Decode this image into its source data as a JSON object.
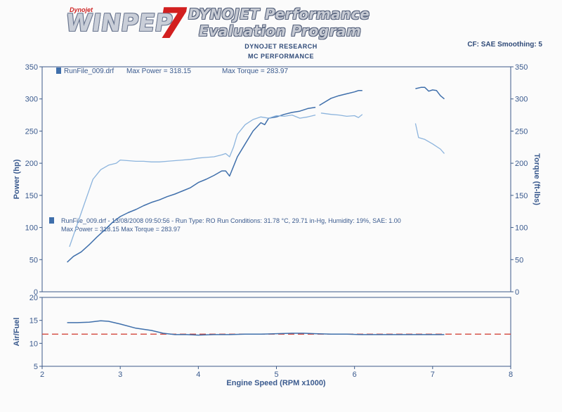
{
  "header": {
    "logo_tag": "Dynojet",
    "logo_text": "WINPEP",
    "logo_number": "7",
    "title_line1": "DYNOJET Performance",
    "title_line2": "Evaluation Program",
    "sub_line1": "DYNOJET RESEARCH",
    "sub_line2": "MC PERFORMANCE",
    "settings": "CF: SAE  Smoothing: 5"
  },
  "chart_data": [
    {
      "type": "line",
      "title": "",
      "legend_top": {
        "file": "RunFile_009.drf",
        "max_power": "Max Power = 318.15",
        "max_torque": "Max Torque = 283.97"
      },
      "legend_run": {
        "line1": "RunFile_009.drf - 13/08/2008 09:50:56 - Run Type: RO  Run Conditions: 31.78 °C, 29.71 in-Hg,  Humidity:  19%, SAE: 1.00",
        "line2": "Max Power = 318.15  Max Torque = 283.97"
      },
      "ylabel_left": "Power (hp)",
      "ylabel_right": "Torque (ft-lbs)",
      "ylim": [
        0,
        350
      ],
      "yticks": [
        "0",
        "50",
        "100",
        "150",
        "200",
        "250",
        "300",
        "350"
      ],
      "xlim": [
        2,
        8
      ],
      "grid": false,
      "series": [
        {
          "name": "",
          "color": "#3f6fab",
          "segments": [
            {
              "x": [
                2.32,
                2.4,
                2.5,
                2.6,
                2.7,
                2.8,
                2.9,
                3.0,
                3.1,
                3.2,
                3.3,
                3.4,
                3.5,
                3.6,
                3.7,
                3.8,
                3.9,
                4.0,
                4.1,
                4.2,
                4.3,
                4.35,
                4.4,
                4.45,
                4.5,
                4.6,
                4.7,
                4.8,
                4.85,
                4.9,
                5.0,
                5.1,
                5.2,
                5.3,
                5.4,
                5.5
              ],
              "y": [
                46,
                55,
                62,
                73,
                85,
                96,
                108,
                117,
                123,
                128,
                134,
                139,
                143,
                148,
                152,
                157,
                162,
                170,
                175,
                181,
                188,
                188,
                180,
                195,
                210,
                230,
                250,
                263,
                260,
                270,
                272,
                276,
                279,
                281,
                285,
                287
              ]
            },
            {
              "x": [
                5.55,
                5.7,
                5.8,
                5.9,
                6.0,
                6.05,
                6.1
              ],
              "y": [
                290,
                301,
                305,
                308,
                311,
                313,
                313
              ]
            },
            {
              "x": [
                6.78,
                6.85,
                6.9,
                6.95,
                7.0,
                7.05,
                7.1,
                7.15
              ],
              "y": [
                316,
                318,
                318,
                312,
                314,
                313,
                305,
                300
              ]
            }
          ]
        },
        {
          "name": "",
          "color": "#8cb4dd",
          "segments": [
            {
              "x": [
                2.35,
                2.45,
                2.55,
                2.65,
                2.75,
                2.85,
                2.95,
                3.0,
                3.1,
                3.2,
                3.3,
                3.4,
                3.5,
                3.6,
                3.7,
                3.8,
                3.9,
                4.0,
                4.1,
                4.2,
                4.3,
                4.35,
                4.4,
                4.45,
                4.5,
                4.6,
                4.7,
                4.8,
                4.9,
                5.0,
                5.1,
                5.2,
                5.3,
                5.4,
                5.5
              ],
              "y": [
                70,
                105,
                140,
                175,
                190,
                197,
                200,
                205,
                204,
                203,
                203,
                202,
                202,
                203,
                204,
                205,
                206,
                208,
                209,
                210,
                213,
                215,
                210,
                225,
                245,
                260,
                268,
                272,
                270,
                274,
                273,
                275,
                270,
                272,
                275
              ]
            },
            {
              "x": [
                5.57,
                5.7,
                5.8,
                5.9,
                6.0,
                6.05,
                6.1
              ],
              "y": [
                278,
                276,
                275,
                273,
                274,
                271,
                276
              ]
            },
            {
              "x": [
                6.78,
                6.82,
                6.9,
                7.0,
                7.1,
                7.15
              ],
              "y": [
                262,
                240,
                237,
                230,
                222,
                215
              ]
            }
          ]
        }
      ]
    },
    {
      "type": "line",
      "ylabel": "Air/Fuel",
      "xlabel": "Engine Speed (RPM x1000)",
      "ylim": [
        5,
        20
      ],
      "yticks": [
        "5",
        "10",
        "15",
        "20"
      ],
      "xlim": [
        2,
        8
      ],
      "xticks": [
        "2",
        "3",
        "4",
        "5",
        "6",
        "7",
        "8"
      ],
      "target": 12,
      "target_color": "#d0362b",
      "series": [
        {
          "name": "",
          "color": "#3f6fab",
          "x": [
            2.32,
            2.45,
            2.6,
            2.75,
            2.85,
            3.0,
            3.2,
            3.4,
            3.55,
            3.7,
            3.85,
            4.0,
            4.2,
            4.4,
            4.6,
            4.8,
            5.0,
            5.2,
            5.35,
            5.5,
            5.7,
            5.9,
            6.1,
            6.3,
            6.5,
            6.78,
            6.9,
            7.0,
            7.15
          ],
          "y": [
            14.5,
            14.5,
            14.6,
            14.9,
            14.8,
            14.2,
            13.3,
            12.8,
            12.2,
            11.9,
            11.9,
            11.8,
            11.9,
            11.9,
            12.0,
            12.0,
            12.1,
            12.2,
            12.2,
            12.1,
            12.0,
            12.0,
            11.9,
            11.9,
            11.9,
            11.9,
            11.9,
            11.9,
            11.9
          ]
        }
      ]
    }
  ]
}
